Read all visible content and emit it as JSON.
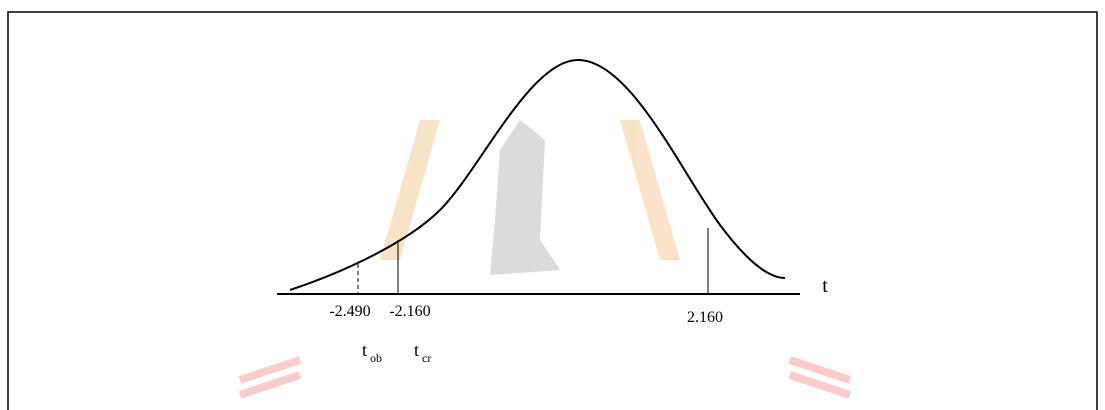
{
  "axis_label": "t",
  "markers": [
    {
      "value_label": "-2.490",
      "symbol": {
        "base": "t",
        "sub": "ob"
      }
    },
    {
      "value_label": "-2.160",
      "symbol": {
        "base": "t",
        "sub": "cr"
      }
    },
    {
      "value_label": "2.160"
    }
  ]
}
